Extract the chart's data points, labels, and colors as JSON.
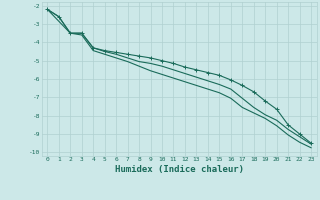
{
  "xlabel": "Humidex (Indice chaleur)",
  "bg_color": "#cce8e8",
  "grid_color": "#b0d0d0",
  "line_color": "#1a6b5a",
  "xlim": [
    -0.5,
    23.5
  ],
  "ylim": [
    -10.2,
    -1.8
  ],
  "xticks": [
    0,
    1,
    2,
    3,
    4,
    5,
    6,
    7,
    8,
    9,
    10,
    11,
    12,
    13,
    14,
    15,
    16,
    17,
    18,
    19,
    20,
    21,
    22,
    23
  ],
  "yticks": [
    -2,
    -3,
    -4,
    -5,
    -6,
    -7,
    -8,
    -9,
    -10
  ],
  "line1_x": [
    0,
    1,
    2,
    3,
    4,
    5,
    6,
    7,
    8,
    9,
    10,
    11,
    12,
    13,
    14,
    15,
    16,
    17,
    18,
    19,
    20,
    21,
    22,
    23
  ],
  "line1_y": [
    -2.2,
    -2.6,
    -3.5,
    -3.5,
    -4.3,
    -4.45,
    -4.55,
    -4.65,
    -4.75,
    -4.85,
    -5.0,
    -5.15,
    -5.35,
    -5.5,
    -5.65,
    -5.8,
    -6.05,
    -6.35,
    -6.7,
    -7.2,
    -7.65,
    -8.5,
    -9.0,
    -9.5
  ],
  "line2_x": [
    0,
    2,
    3,
    4,
    5,
    6,
    7,
    8,
    9,
    10,
    11,
    12,
    13,
    14,
    15,
    16,
    17,
    18,
    19,
    20,
    21,
    22,
    23
  ],
  "line2_y": [
    -2.2,
    -3.5,
    -3.5,
    -4.3,
    -4.5,
    -4.65,
    -4.85,
    -5.05,
    -5.15,
    -5.3,
    -5.5,
    -5.7,
    -5.9,
    -6.1,
    -6.3,
    -6.55,
    -7.05,
    -7.55,
    -7.95,
    -8.25,
    -8.75,
    -9.15,
    -9.55
  ],
  "line3_x": [
    0,
    1,
    2,
    3,
    4,
    5,
    6,
    7,
    8,
    9,
    10,
    11,
    12,
    13,
    14,
    15,
    16,
    17,
    18,
    19,
    20,
    21,
    22,
    23
  ],
  "line3_y": [
    -2.2,
    -2.6,
    -3.5,
    -3.6,
    -4.45,
    -4.65,
    -4.85,
    -5.05,
    -5.3,
    -5.55,
    -5.75,
    -5.95,
    -6.15,
    -6.35,
    -6.55,
    -6.75,
    -7.05,
    -7.55,
    -7.85,
    -8.15,
    -8.55,
    -9.05,
    -9.45,
    -9.75
  ]
}
